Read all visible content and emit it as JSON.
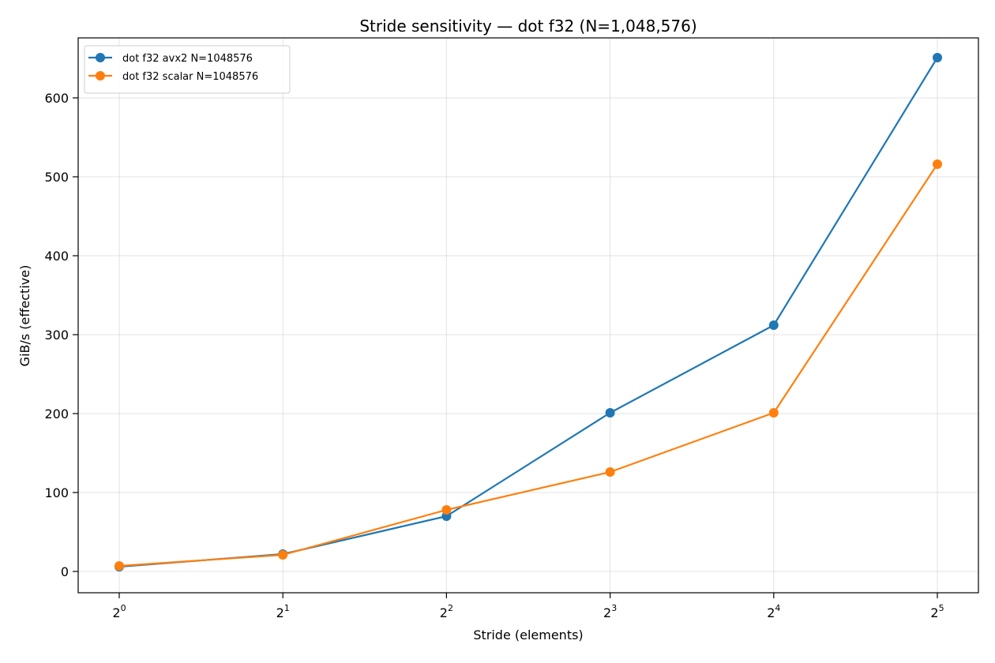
{
  "chart_data": {
    "type": "line",
    "title": "Stride sensitivity — dot f32 (N=1,048,576)",
    "xlabel": "Stride (elements)",
    "ylabel": "GiB/s (effective)",
    "x_scale": "log2",
    "x": [
      1,
      2,
      4,
      8,
      16,
      32
    ],
    "x_tick_labels": [
      {
        "base": "2",
        "exp": "0"
      },
      {
        "base": "2",
        "exp": "1"
      },
      {
        "base": "2",
        "exp": "2"
      },
      {
        "base": "2",
        "exp": "3"
      },
      {
        "base": "2",
        "exp": "4"
      },
      {
        "base": "2",
        "exp": "5"
      }
    ],
    "y_ticks": [
      0,
      100,
      200,
      300,
      400,
      500,
      600
    ],
    "ylim": [
      -27,
      676
    ],
    "grid": true,
    "legend_position": "top-left",
    "series": [
      {
        "name": "dot f32 avx2 N=1048576",
        "color": "#1f77b4",
        "values": [
          6,
          22,
          70,
          201,
          312,
          651
        ]
      },
      {
        "name": "dot f32 scalar N=1048576",
        "color": "#ff7f0e",
        "values": [
          7,
          21,
          78,
          126,
          201,
          516
        ]
      }
    ]
  }
}
